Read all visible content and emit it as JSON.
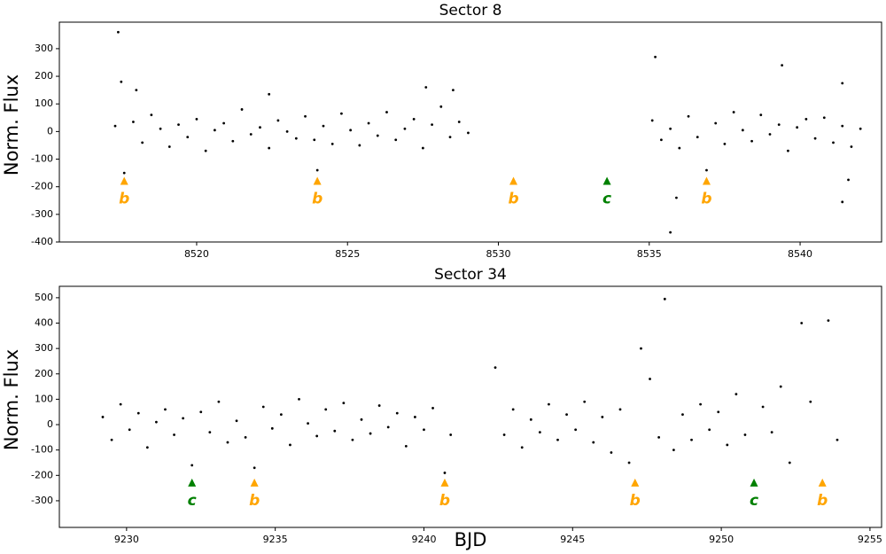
{
  "chart_data": [
    {
      "type": "scatter",
      "title": "Sector 8",
      "ylabel": "Norm. Flux",
      "color": "#000000",
      "xlim": [
        8515.45,
        8542.7
      ],
      "ylim": [
        -400,
        396
      ],
      "xticks": [
        8520,
        8525,
        8530,
        8535,
        8540
      ],
      "yticks": [
        -400,
        -300,
        -200,
        -100,
        0,
        100,
        200,
        300
      ],
      "x": [
        8517.3,
        8517.6,
        8517.9,
        8518.2,
        8518.5,
        8518.8,
        8519.1,
        8519.4,
        8519.7,
        8520.0,
        8520.3,
        8520.6,
        8520.9,
        8521.2,
        8521.5,
        8521.8,
        8522.1,
        8522.4,
        8522.7,
        8523.0,
        8523.3,
        8523.6,
        8523.9,
        8524.0,
        8524.2,
        8524.5,
        8524.8,
        8525.1,
        8525.4,
        8525.7,
        8526.0,
        8526.3,
        8526.6,
        8526.9,
        8527.2,
        8527.5,
        8527.8,
        8528.1,
        8528.4,
        8528.7,
        8529.0,
        8535.1,
        8535.4,
        8535.7,
        8536.0,
        8536.3,
        8536.6,
        8536.9,
        8537.2,
        8537.5,
        8537.8,
        8538.1,
        8538.4,
        8538.7,
        8539.0,
        8539.3,
        8539.6,
        8539.9,
        8540.2,
        8540.5,
        8540.8,
        8541.1,
        8541.4,
        8541.7,
        8542.0,
        8517.4,
        8517.5,
        8518.0,
        8522.4,
        8527.6,
        8528.5,
        8535.2,
        8535.7,
        8535.9,
        8539.4,
        8541.4,
        8541.4,
        8541.6
      ],
      "values": [
        20,
        -150,
        35,
        -40,
        60,
        10,
        -55,
        25,
        -20,
        45,
        -70,
        5,
        30,
        -35,
        80,
        -10,
        15,
        -60,
        40,
        0,
        -25,
        55,
        -30,
        -140,
        20,
        -45,
        65,
        5,
        -50,
        30,
        -15,
        70,
        -30,
        10,
        45,
        -60,
        25,
        90,
        -20,
        35,
        -5,
        40,
        -30,
        10,
        -60,
        55,
        -20,
        -140,
        30,
        -45,
        70,
        5,
        -35,
        60,
        -10,
        25,
        -70,
        15,
        45,
        -25,
        50,
        -40,
        20,
        -55,
        10,
        360,
        180,
        150,
        135,
        160,
        150,
        270,
        -365,
        -240,
        240,
        -255,
        175,
        -175
      ],
      "annotations": [
        {
          "x": 8517.6,
          "y": -180,
          "label": "b",
          "color": "#ffa500"
        },
        {
          "x": 8524.0,
          "y": -180,
          "label": "b",
          "color": "#ffa500"
        },
        {
          "x": 8530.5,
          "y": -180,
          "label": "b",
          "color": "#ffa500"
        },
        {
          "x": 8533.6,
          "y": -180,
          "label": "c",
          "color": "#008000"
        },
        {
          "x": 8536.9,
          "y": -180,
          "label": "b",
          "color": "#ffa500"
        }
      ]
    },
    {
      "type": "scatter",
      "title": "Sector 34",
      "ylabel": "Norm. Flux",
      "xlabel": "BJD",
      "color": "#000000",
      "xlim": [
        9227.74,
        9255.39
      ],
      "ylim": [
        -405,
        545
      ],
      "xticks": [
        9230,
        9235,
        9240,
        9245,
        9250,
        9255
      ],
      "yticks": [
        -300,
        -200,
        -100,
        0,
        100,
        200,
        300,
        400,
        500
      ],
      "x": [
        9229.2,
        9229.5,
        9229.8,
        9230.1,
        9230.4,
        9230.7,
        9231.0,
        9231.3,
        9231.6,
        9231.9,
        9232.2,
        9232.5,
        9232.8,
        9233.1,
        9233.4,
        9233.7,
        9234.0,
        9234.3,
        9234.6,
        9234.9,
        9235.2,
        9235.5,
        9235.8,
        9236.1,
        9236.4,
        9236.7,
        9237.0,
        9237.3,
        9237.6,
        9237.9,
        9238.2,
        9238.5,
        9238.8,
        9239.1,
        9239.4,
        9239.7,
        9240.0,
        9240.3,
        9240.7,
        9240.9,
        9242.4,
        9242.7,
        9243.0,
        9243.3,
        9243.6,
        9243.9,
        9244.2,
        9244.5,
        9244.8,
        9245.1,
        9245.4,
        9245.7,
        9246.0,
        9246.3,
        9246.6,
        9246.9,
        9247.1,
        9247.3,
        9247.6,
        9247.9,
        9248.1,
        9248.4,
        9248.7,
        9249.0,
        9249.3,
        9249.6,
        9249.9,
        9250.2,
        9250.5,
        9250.8,
        9251.1,
        9251.4,
        9251.7,
        9252.0,
        9252.3,
        9252.7,
        9253.0,
        9253.4,
        9253.6,
        9253.9
      ],
      "values": [
        30,
        -60,
        80,
        -20,
        45,
        -90,
        10,
        60,
        -40,
        25,
        -160,
        50,
        -30,
        90,
        -70,
        15,
        -50,
        -170,
        70,
        -15,
        40,
        -80,
        100,
        5,
        -45,
        60,
        -25,
        85,
        -60,
        20,
        -35,
        75,
        -10,
        45,
        -85,
        30,
        -20,
        65,
        -190,
        -40,
        225,
        -40,
        60,
        -90,
        20,
        -30,
        80,
        -60,
        40,
        -20,
        90,
        -70,
        30,
        -110,
        60,
        -150,
        -230,
        300,
        180,
        -50,
        495,
        -100,
        40,
        -60,
        80,
        -20,
        50,
        -80,
        120,
        -40,
        -230,
        70,
        -30,
        150,
        -150,
        400,
        90,
        -230,
        410,
        -60
      ],
      "annotations": [
        {
          "x": 9232.2,
          "y": -230,
          "label": "c",
          "color": "#008000"
        },
        {
          "x": 9234.3,
          "y": -230,
          "label": "b",
          "color": "#ffa500"
        },
        {
          "x": 9240.7,
          "y": -230,
          "label": "b",
          "color": "#ffa500"
        },
        {
          "x": 9247.1,
          "y": -230,
          "label": "b",
          "color": "#ffa500"
        },
        {
          "x": 9251.1,
          "y": -230,
          "label": "c",
          "color": "#008000"
        },
        {
          "x": 9253.4,
          "y": -230,
          "label": "b",
          "color": "#ffa500"
        }
      ]
    }
  ]
}
